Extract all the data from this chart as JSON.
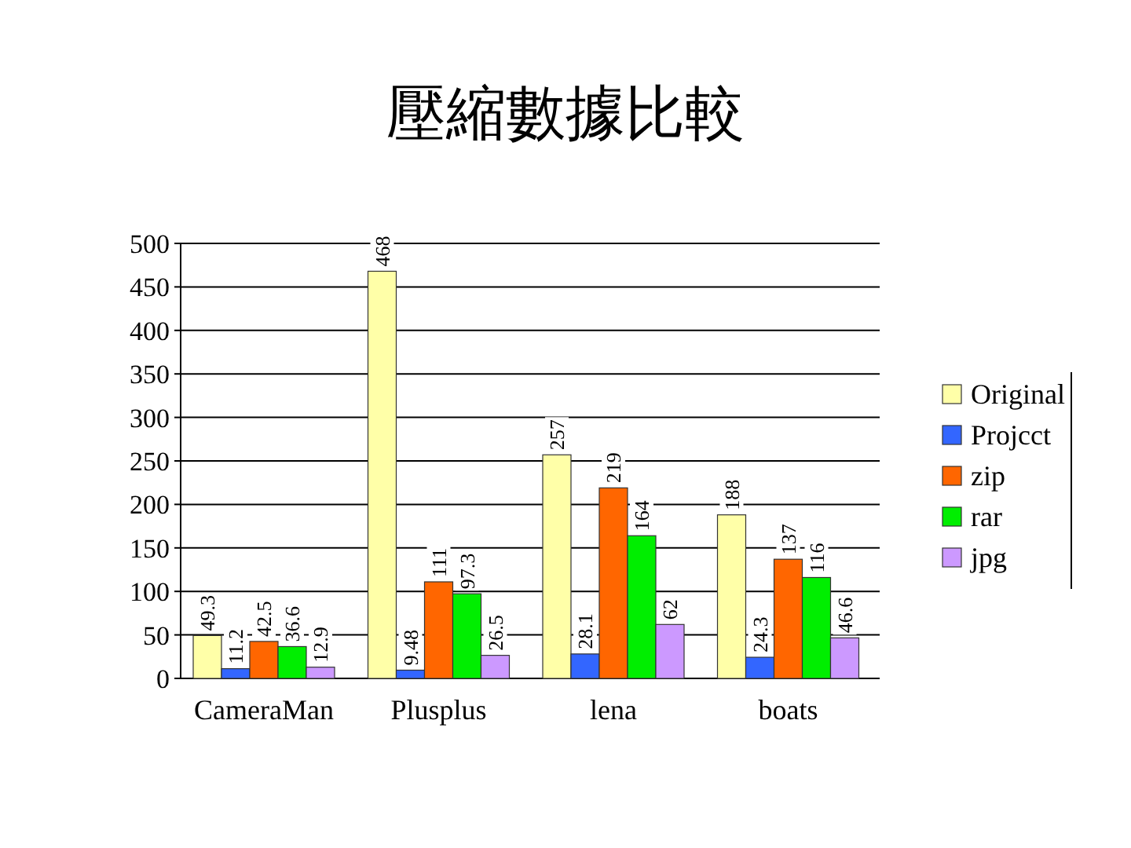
{
  "chart_data": {
    "type": "bar",
    "title": "壓縮數據比較",
    "categories": [
      "CameraMan",
      "Plusplus",
      "lena",
      "boats"
    ],
    "series": [
      {
        "name": "Original",
        "color": "#ffffa8",
        "values": [
          49.3,
          468,
          257,
          188
        ]
      },
      {
        "name": "Projcct",
        "color": "#3366ff",
        "values": [
          11.2,
          9.48,
          28.1,
          24.3
        ]
      },
      {
        "name": "zip",
        "color": "#ff6600",
        "values": [
          42.5,
          111,
          219,
          137
        ]
      },
      {
        "name": "rar",
        "color": "#00ee00",
        "values": [
          36.6,
          97.3,
          164,
          116
        ]
      },
      {
        "name": "jpg",
        "color": "#cc99ff",
        "values": [
          12.9,
          26.5,
          62,
          46.6
        ]
      }
    ],
    "ylim": [
      0,
      500
    ],
    "yticks": [
      0,
      50,
      100,
      150,
      200,
      250,
      300,
      350,
      400,
      450,
      500
    ],
    "grid": "y",
    "legend": "right",
    "data_labels": true
  }
}
